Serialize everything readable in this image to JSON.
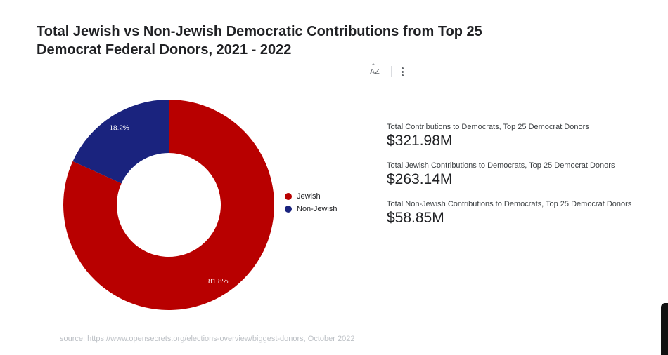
{
  "title": "Total Jewish vs Non-Jewish Democratic Contributions from Top 25 Democrat Federal Donors, 2021 - 2022",
  "toolbar": {
    "sort_icon": "sort-az-icon",
    "sort_text": "AZ",
    "more_icon": "more-vert-icon"
  },
  "chart_data": {
    "type": "pie",
    "title": "Total Jewish vs Non-Jewish Democratic Contributions from Top 25 Democrat Federal Donors, 2021 - 2022",
    "donut": true,
    "legend_position": "right",
    "slices": [
      {
        "label": "Jewish",
        "value": 81.8,
        "display": "81.8%",
        "color": "#b80000"
      },
      {
        "label": "Non-Jewish",
        "value": 18.2,
        "display": "18.2%",
        "color": "#1a237e"
      }
    ]
  },
  "scorecards": [
    {
      "label": "Total Contributions to Democrats, Top 25 Democrat Donors",
      "value": "$321.98M"
    },
    {
      "label": "Total Jewish Contributions to Democrats, Top 25 Democrat Donors",
      "value": "$263.14M"
    },
    {
      "label": "Total Non-Jewish Contributions to Democrats, Top 25 Democrat Donors",
      "value": "$58.85M"
    }
  ],
  "source": "source: https://www.opensecrets.org/elections-overview/biggest-donors, October 2022"
}
